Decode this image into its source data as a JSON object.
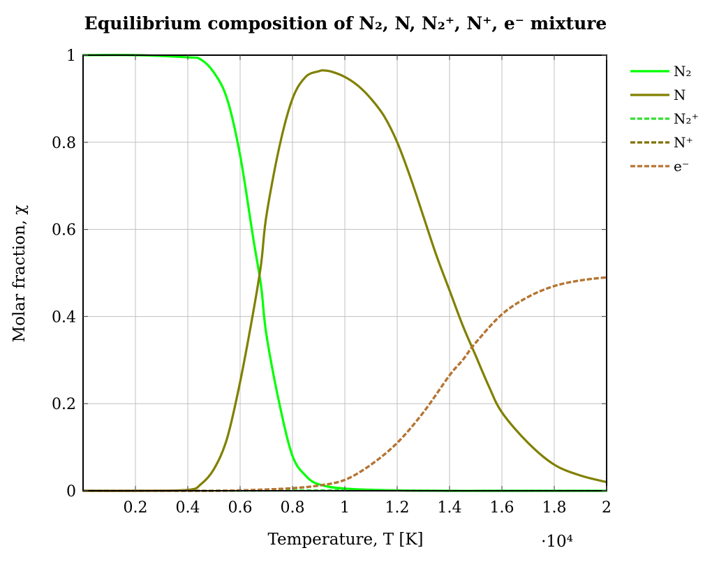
{
  "chart_data": {
    "type": "line",
    "title": "Equilibrium composition of N₂, N, N₂⁺, N⁺, e⁻ mixture",
    "xlabel": "Temperature, T [K]",
    "ylabel": "Molar fraction, χ",
    "x_multiplier": "·10⁴",
    "xlim": [
      0.0,
      2.0
    ],
    "ylim": [
      0,
      1
    ],
    "x_ticks": [
      0.2,
      0.4,
      0.6,
      0.8,
      1,
      1.2,
      1.4,
      1.6,
      1.8,
      2
    ],
    "x_tick_labels": [
      "0.2",
      "0.4",
      "0.6",
      "0.8",
      "1",
      "1.2",
      "1.4",
      "1.6",
      "1.8",
      "2"
    ],
    "y_ticks": [
      0,
      0.2,
      0.4,
      0.6,
      0.8,
      1
    ],
    "y_tick_labels": [
      "0",
      "0.2",
      "0.4",
      "0.6",
      "0.8",
      "1"
    ],
    "grid": true,
    "legend_position": "outside-right-top",
    "series": [
      {
        "name": "N₂",
        "color": "#00ff00",
        "dash": "solid",
        "x": [
          0.0,
          0.2,
          0.4,
          0.45,
          0.5,
          0.55,
          0.6,
          0.65,
          0.68,
          0.7,
          0.75,
          0.8,
          0.85,
          0.9,
          1.0,
          1.2,
          1.4,
          1.6,
          1.8,
          2.0
        ],
        "y": [
          1.0,
          1.0,
          0.995,
          0.99,
          0.96,
          0.9,
          0.77,
          0.58,
          0.47,
          0.36,
          0.2,
          0.08,
          0.035,
          0.015,
          0.005,
          0.001,
          0.0,
          0.0,
          0.0,
          0.0
        ]
      },
      {
        "name": "N",
        "color": "#808000",
        "dash": "solid",
        "x": [
          0.0,
          0.2,
          0.4,
          0.45,
          0.5,
          0.55,
          0.6,
          0.65,
          0.68,
          0.7,
          0.75,
          0.8,
          0.85,
          0.9,
          0.92,
          0.95,
          1.0,
          1.05,
          1.1,
          1.15,
          1.2,
          1.25,
          1.3,
          1.35,
          1.4,
          1.45,
          1.5,
          1.55,
          1.6,
          1.7,
          1.8,
          1.9,
          2.0
        ],
        "y": [
          0.0,
          0.0,
          0.002,
          0.015,
          0.05,
          0.12,
          0.25,
          0.41,
          0.52,
          0.63,
          0.79,
          0.9,
          0.95,
          0.963,
          0.965,
          0.962,
          0.95,
          0.93,
          0.9,
          0.86,
          0.8,
          0.72,
          0.63,
          0.54,
          0.46,
          0.38,
          0.31,
          0.24,
          0.18,
          0.11,
          0.06,
          0.035,
          0.02
        ]
      },
      {
        "name": "N₂⁺",
        "color": "#33dd33",
        "dash": "dashed",
        "x": [
          0.0,
          0.5,
          0.8,
          1.0,
          1.2,
          1.4,
          1.6,
          1.8,
          2.0
        ],
        "y": [
          0.0,
          0.0,
          0.001,
          0.001,
          0.001,
          0.0,
          0.0,
          0.0,
          0.0
        ]
      },
      {
        "name": "N⁺",
        "color": "#807000",
        "dash": "dashed",
        "x": [
          0.0,
          0.4,
          0.5,
          0.6,
          0.7,
          0.8,
          0.9,
          1.0,
          1.1,
          1.2,
          1.3,
          1.4,
          1.45,
          1.5,
          1.6,
          1.7,
          1.8,
          1.9,
          2.0
        ],
        "y": [
          0.0,
          0.0,
          0.0,
          0.001,
          0.003,
          0.006,
          0.012,
          0.025,
          0.06,
          0.11,
          0.18,
          0.265,
          0.3,
          0.34,
          0.405,
          0.445,
          0.47,
          0.483,
          0.49
        ]
      },
      {
        "name": "e⁻",
        "color": "#b87333",
        "dash": "dashed",
        "x": [
          0.0,
          0.4,
          0.5,
          0.6,
          0.7,
          0.8,
          0.9,
          1.0,
          1.1,
          1.2,
          1.3,
          1.4,
          1.45,
          1.5,
          1.6,
          1.7,
          1.8,
          1.9,
          2.0
        ],
        "y": [
          0.0,
          0.0,
          0.0,
          0.001,
          0.003,
          0.006,
          0.012,
          0.025,
          0.06,
          0.11,
          0.18,
          0.265,
          0.3,
          0.34,
          0.405,
          0.445,
          0.47,
          0.483,
          0.49
        ]
      }
    ]
  }
}
